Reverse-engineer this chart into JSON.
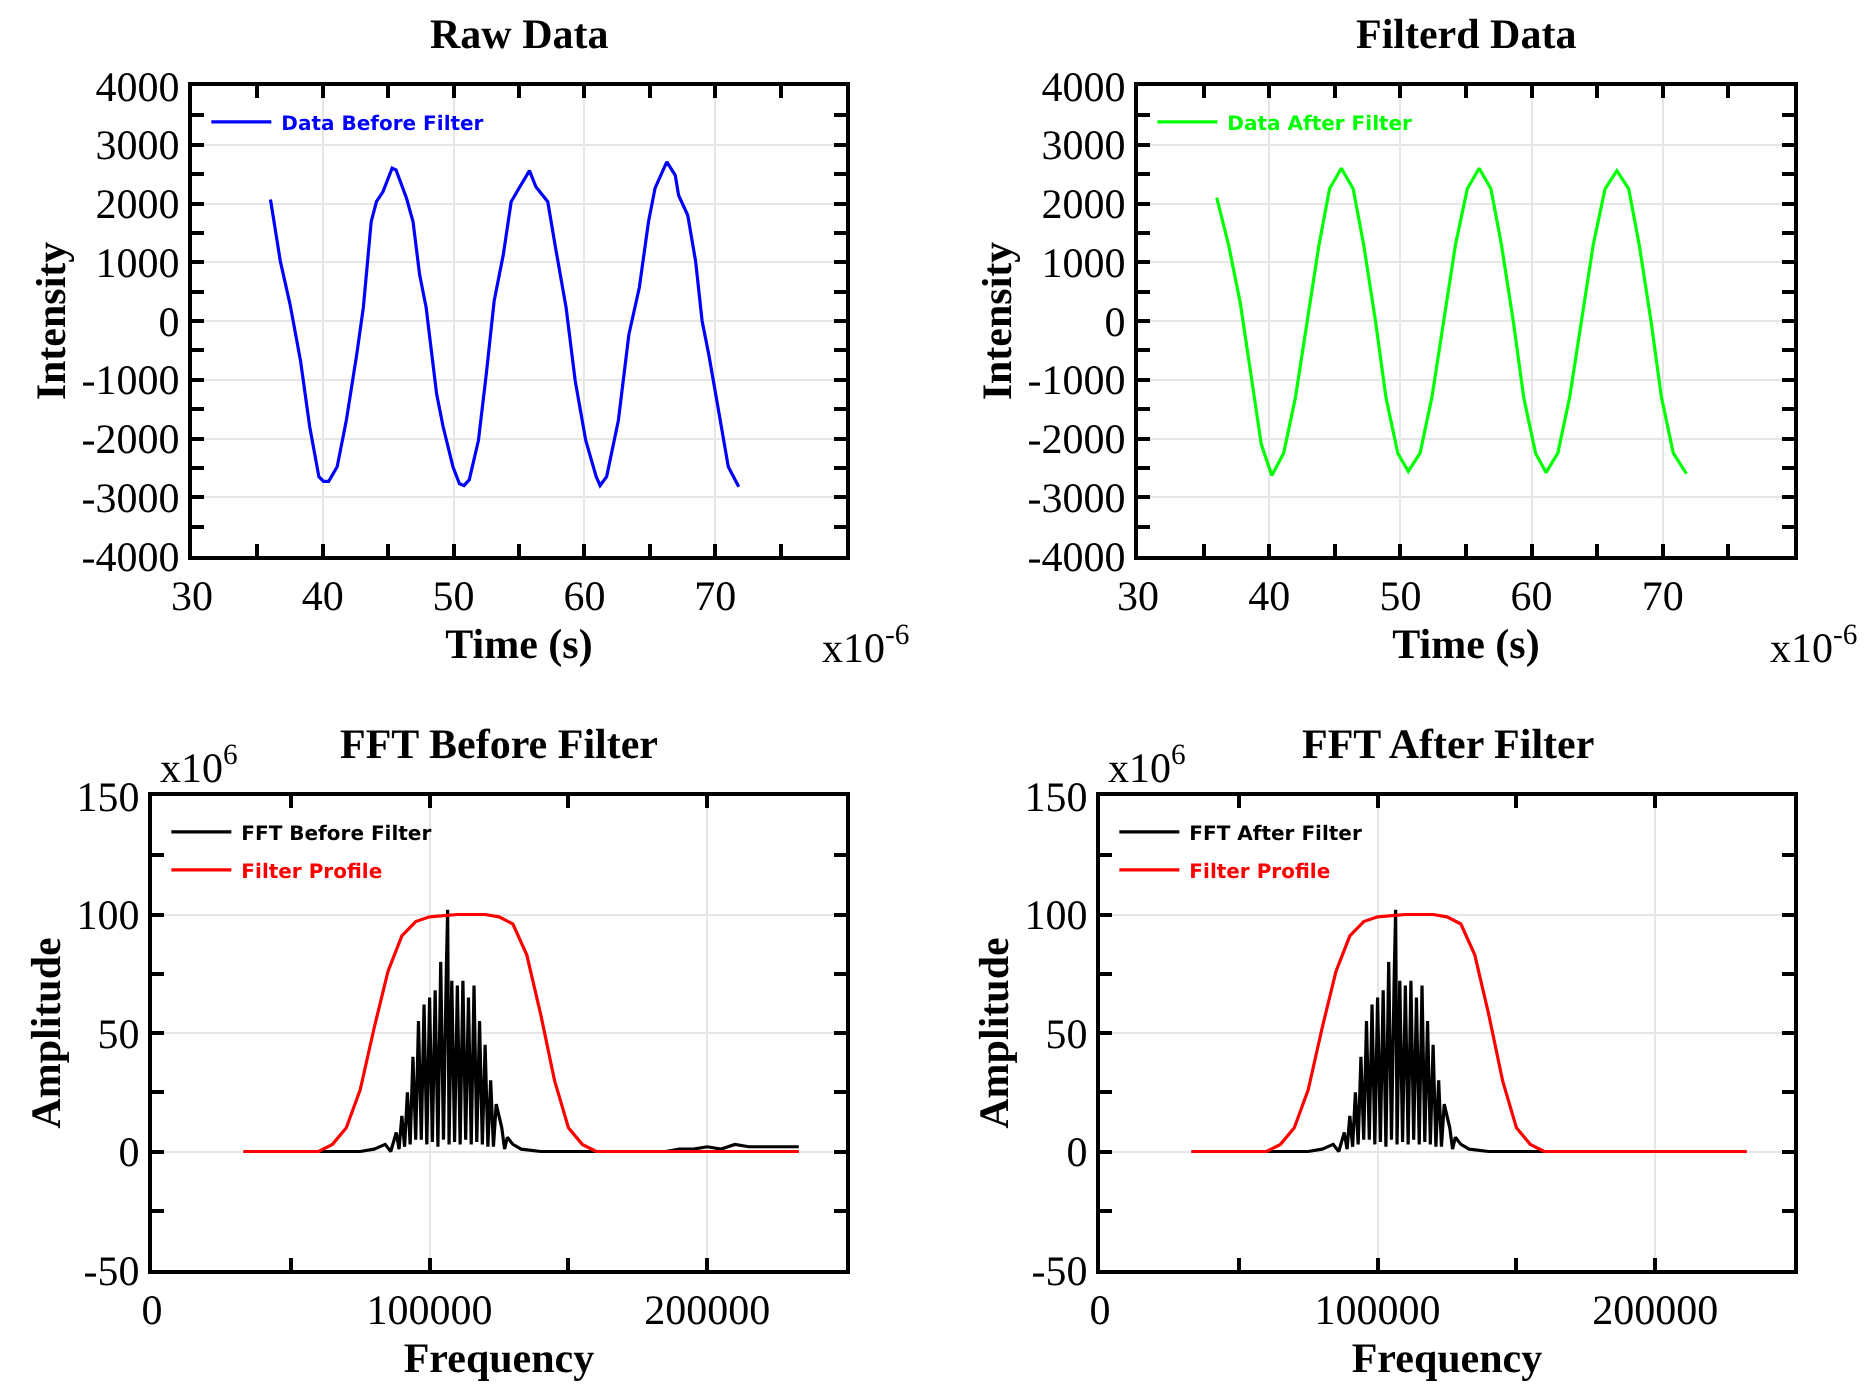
{
  "chart_data": [
    {
      "type": "line",
      "title": "Raw Data",
      "xlabel": "Time (s)",
      "ylabel": "Intensity",
      "xlim": [
        30,
        80
      ],
      "ylim": [
        -4000,
        4000
      ],
      "xticks": [
        30,
        {
          "value": 35,
          "label": null
        },
        40,
        {
          "value": 45,
          "label": null
        },
        50,
        {
          "value": 55,
          "label": null
        },
        60,
        {
          "value": 65,
          "label": null
        },
        70,
        {
          "value": 75,
          "label": null
        },
        {
          "value": 80,
          "label": null
        }
      ],
      "yticks": [
        -4000,
        {
          "value": -3500,
          "label": null
        },
        -3000,
        {
          "value": -2500,
          "label": null
        },
        -2000,
        {
          "value": -1500,
          "label": null
        },
        -1000,
        {
          "value": -500,
          "label": null
        },
        0,
        {
          "value": 500,
          "label": null
        },
        1000,
        {
          "value": 1500,
          "label": null
        },
        2000,
        {
          "value": 2500,
          "label": null
        },
        3000,
        {
          "value": 3500,
          "label": null
        },
        4000
      ],
      "grid": true,
      "legend": "top left",
      "annotations": [
        "x10$^{-6}$"
      ],
      "series": [
        {
          "name": "Data Before Filter",
          "color": "#0000ff",
          "x": [
            36.0,
            36.75,
            37.5,
            38.3,
            39.0,
            39.7,
            40.05,
            40.45,
            41.1,
            41.8,
            42.6,
            43.1,
            43.7,
            44.1,
            44.6,
            45.3,
            45.6,
            46.4,
            46.9,
            47.4,
            47.9,
            48.7,
            49.2,
            49.95,
            50.45,
            50.8,
            51.2,
            51.9,
            52.5,
            53.1,
            53.8,
            54.4,
            55.0,
            55.8,
            56.3,
            57.2,
            57.8,
            58.6,
            59.3,
            60.1,
            60.9,
            61.2,
            61.7,
            62.6,
            63.4,
            64.2,
            64.9,
            65.4,
            66.3,
            66.95,
            67.2,
            67.9,
            68.5,
            69.0,
            69.5,
            70.3,
            71.0,
            71.8
          ],
          "values": [
            2070,
            1020,
            280,
            -680,
            -1800,
            -2650,
            -2730,
            -2730,
            -2480,
            -1690,
            -560,
            230,
            1690,
            2030,
            2200,
            2600,
            2570,
            2090,
            1690,
            790,
            230,
            -1240,
            -1800,
            -2480,
            -2770,
            -2800,
            -2700,
            -2030,
            -900,
            340,
            1130,
            2030,
            2260,
            2560,
            2280,
            2030,
            1240,
            230,
            -1020,
            -2030,
            -2650,
            -2800,
            -2650,
            -1690,
            -230,
            570,
            1690,
            2260,
            2710,
            2480,
            2140,
            1800,
            1020,
            0,
            -560,
            -1580,
            -2480,
            -2820
          ]
        }
      ]
    },
    {
      "type": "line",
      "title": "Filterd Data",
      "xlabel": "Time (s)",
      "ylabel": "Intensity",
      "xlim": [
        30,
        80
      ],
      "ylim": [
        -4000,
        4000
      ],
      "xticks": [
        30,
        {
          "value": 35,
          "label": null
        },
        40,
        {
          "value": 45,
          "label": null
        },
        50,
        {
          "value": 55,
          "label": null
        },
        60,
        {
          "value": 65,
          "label": null
        },
        70,
        {
          "value": 75,
          "label": null
        },
        {
          "value": 80,
          "label": null
        }
      ],
      "yticks": [
        -4000,
        {
          "value": -3500,
          "label": null
        },
        -3000,
        {
          "value": -2500,
          "label": null
        },
        -2000,
        {
          "value": -1500,
          "label": null
        },
        -1000,
        {
          "value": -500,
          "label": null
        },
        0,
        {
          "value": 500,
          "label": null
        },
        1000,
        {
          "value": 1500,
          "label": null
        },
        2000,
        {
          "value": 2500,
          "label": null
        },
        3000,
        {
          "value": 3500,
          "label": null
        },
        4000
      ],
      "grid": true,
      "legend": "top left",
      "annotations": [
        "x10$^{-6}$"
      ],
      "series": [
        {
          "name": "Data After Filter",
          "color": "#00ff00",
          "x": [
            36.0,
            36.9,
            37.8,
            38.6,
            39.4,
            40.2,
            41.1,
            42.0,
            42.9,
            43.8,
            44.6,
            45.5,
            46.4,
            47.2,
            48.1,
            48.9,
            49.8,
            50.6,
            51.5,
            52.4,
            53.3,
            54.2,
            55.1,
            56.0,
            56.9,
            57.7,
            58.6,
            59.4,
            60.3,
            61.1,
            62.0,
            62.9,
            63.8,
            64.7,
            65.6,
            66.5,
            67.4,
            68.2,
            69.1,
            69.9,
            70.8,
            71.8
          ],
          "values": [
            2100,
            1300,
            300,
            -900,
            -2100,
            -2630,
            -2250,
            -1300,
            0,
            1300,
            2250,
            2600,
            2250,
            1300,
            0,
            -1300,
            -2250,
            -2560,
            -2250,
            -1300,
            0,
            1300,
            2250,
            2600,
            2250,
            1300,
            0,
            -1300,
            -2250,
            -2580,
            -2250,
            -1300,
            0,
            1300,
            2250,
            2560,
            2250,
            1300,
            0,
            -1300,
            -2250,
            -2600
          ]
        }
      ]
    },
    {
      "type": "line",
      "title": "FFT Before Filter",
      "xlabel": "Frequency",
      "ylabel": "Amplitude",
      "xlim": [
        0,
        250000
      ],
      "ylim": [
        -50,
        150
      ],
      "xticks": [
        0,
        {
          "value": 50000,
          "label": null
        },
        100000,
        {
          "value": 150000,
          "label": null
        },
        200000,
        {
          "value": 250000,
          "label": null
        }
      ],
      "yticks": [
        -50,
        {
          "value": -25,
          "label": null
        },
        0,
        {
          "value": 25,
          "label": null
        },
        50,
        {
          "value": 75,
          "label": null
        },
        100,
        {
          "value": 125,
          "label": null
        },
        150
      ],
      "grid": true,
      "legend": "top left",
      "annotations": [
        "x10$^{6}$"
      ],
      "series": [
        {
          "name": "FFT Before Filter",
          "color": "#000000",
          "x": [
            33000,
            60000,
            75000,
            80000,
            84000,
            86000,
            88000,
            89000,
            90000,
            91000,
            92000,
            93000,
            94000,
            95000,
            96000,
            97000,
            98000,
            99000,
            100000,
            101000,
            102000,
            103000,
            104000,
            105000,
            106000,
            106500,
            107000,
            108000,
            109000,
            110000,
            111000,
            112000,
            113000,
            114000,
            115000,
            116000,
            117000,
            118000,
            119000,
            120000,
            121000,
            122000,
            123000,
            124000,
            126000,
            127000,
            128000,
            130000,
            133000,
            140000,
            185000,
            190000,
            195000,
            200000,
            205000,
            210000,
            215000,
            220000,
            225000,
            233000
          ],
          "values": [
            0,
            0,
            0,
            1,
            3,
            0,
            8,
            1,
            15,
            2,
            25,
            3,
            40,
            5,
            55,
            5,
            62,
            3,
            65,
            4,
            68,
            2,
            80,
            5,
            75,
            102,
            3,
            72,
            4,
            70,
            3,
            72,
            5,
            65,
            3,
            70,
            4,
            55,
            3,
            45,
            2,
            30,
            2,
            20,
            10,
            1,
            6,
            3,
            1,
            0,
            0,
            1,
            1,
            2,
            1,
            3,
            2,
            2,
            2,
            2
          ]
        },
        {
          "name": "Filter Profile",
          "color": "#ff0000",
          "x": [
            33000,
            55000,
            60000,
            65000,
            70000,
            75000,
            80000,
            85000,
            90000,
            95000,
            100000,
            110000,
            120000,
            125000,
            130000,
            135000,
            140000,
            145000,
            150000,
            155000,
            160000,
            165000,
            233000
          ],
          "values": [
            0,
            0,
            0,
            3,
            10,
            26,
            52,
            76,
            91,
            97,
            99,
            100,
            100,
            99,
            96,
            83,
            58,
            30,
            10,
            3,
            0,
            0,
            0
          ]
        }
      ]
    },
    {
      "type": "line",
      "title": "FFT After Filter",
      "xlabel": "Frequency",
      "ylabel": "Amplitude",
      "xlim": [
        0,
        250000
      ],
      "ylim": [
        -50,
        150
      ],
      "xticks": [
        0,
        {
          "value": 50000,
          "label": null
        },
        100000,
        {
          "value": 150000,
          "label": null
        },
        200000,
        {
          "value": 250000,
          "label": null
        }
      ],
      "yticks": [
        -50,
        {
          "value": -25,
          "label": null
        },
        0,
        {
          "value": 25,
          "label": null
        },
        50,
        {
          "value": 75,
          "label": null
        },
        100,
        {
          "value": 125,
          "label": null
        },
        150
      ],
      "grid": true,
      "legend": "top left",
      "annotations": [
        "x10$^{6}$"
      ],
      "series": [
        {
          "name": "FFT After Filter",
          "color": "#000000",
          "x": [
            33000,
            60000,
            75000,
            80000,
            84000,
            86000,
            88000,
            89000,
            90000,
            91000,
            92000,
            93000,
            94000,
            95000,
            96000,
            97000,
            98000,
            99000,
            100000,
            101000,
            102000,
            103000,
            104000,
            105000,
            106000,
            106500,
            107000,
            108000,
            109000,
            110000,
            111000,
            112000,
            113000,
            114000,
            115000,
            116000,
            117000,
            118000,
            119000,
            120000,
            121000,
            122000,
            123000,
            124000,
            126000,
            127000,
            128000,
            130000,
            133000,
            140000,
            160000
          ],
          "values": [
            0,
            0,
            0,
            1,
            3,
            0,
            8,
            1,
            15,
            2,
            25,
            3,
            40,
            5,
            55,
            5,
            62,
            3,
            65,
            4,
            68,
            2,
            80,
            5,
            75,
            102,
            3,
            72,
            4,
            70,
            3,
            72,
            5,
            65,
            3,
            70,
            4,
            55,
            3,
            45,
            2,
            30,
            2,
            20,
            10,
            1,
            6,
            3,
            1,
            0,
            0
          ]
        },
        {
          "name": "Filter Profile",
          "color": "#ff0000",
          "x": [
            33000,
            55000,
            60000,
            65000,
            70000,
            75000,
            80000,
            85000,
            90000,
            95000,
            100000,
            110000,
            120000,
            125000,
            130000,
            135000,
            140000,
            145000,
            150000,
            155000,
            160000,
            165000,
            233000
          ],
          "values": [
            0,
            0,
            0,
            3,
            10,
            26,
            52,
            76,
            91,
            97,
            99,
            100,
            100,
            99,
            96,
            83,
            58,
            30,
            10,
            3,
            0,
            0,
            0
          ]
        }
      ]
    }
  ]
}
